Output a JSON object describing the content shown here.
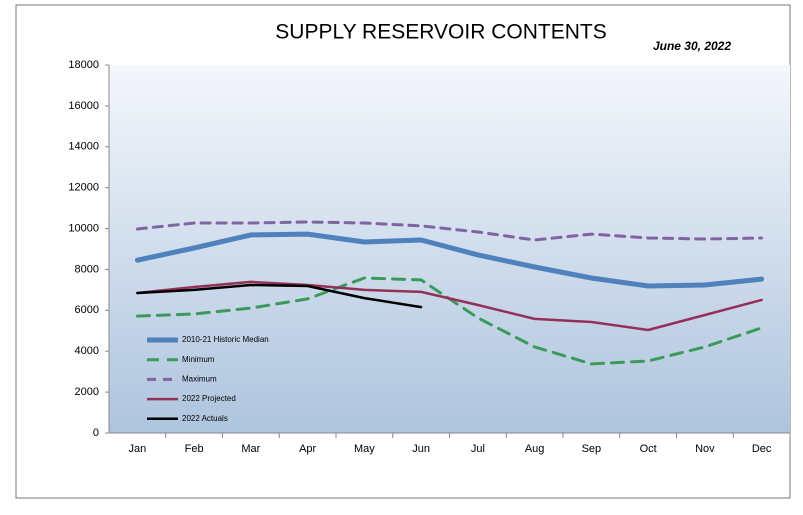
{
  "chart_data": {
    "type": "line",
    "title": "SUPPLY RESERVOIR CONTENTS",
    "subtitle": "June 30, 2022",
    "categories": [
      "Jan",
      "Feb",
      "Mar",
      "Apr",
      "May",
      "Jun",
      "Jul",
      "Aug",
      "Sep",
      "Oct",
      "Nov",
      "Dec"
    ],
    "series": [
      {
        "name": "2010-21 Historic Median",
        "color": "#4f81bd",
        "values": [
          8450,
          9050,
          9690,
          9730,
          9340,
          9440,
          8710,
          8120,
          7580,
          7190,
          7240,
          7530
        ]
      },
      {
        "name": "Minimum",
        "color": "#3b9a5a",
        "values": [
          5720,
          5820,
          6110,
          6560,
          7580,
          7490,
          5630,
          4210,
          3380,
          3520,
          4210,
          5140
        ]
      },
      {
        "name": "Maximum",
        "color": "#8064a2",
        "values": [
          9980,
          10270,
          10270,
          10320,
          10270,
          10130,
          9830,
          9440,
          9730,
          9540,
          9490,
          9540
        ]
      },
      {
        "name": "2022 Projected",
        "color": "#953058",
        "values": [
          6850,
          7140,
          7390,
          7240,
          7000,
          6900,
          6260,
          5580,
          5430,
          5040,
          5770,
          6510
        ]
      },
      {
        "name": "2022 Actuals",
        "color": "#000000",
        "values": [
          6850,
          7000,
          7240,
          7190,
          6600,
          6160,
          null,
          null,
          null,
          null,
          null,
          null
        ]
      }
    ],
    "ylim": [
      0,
      18000
    ],
    "yticks": [
      0,
      2000,
      4000,
      6000,
      8000,
      10000,
      12000,
      14000,
      16000,
      18000
    ],
    "grid": false,
    "legend": "lower left"
  }
}
